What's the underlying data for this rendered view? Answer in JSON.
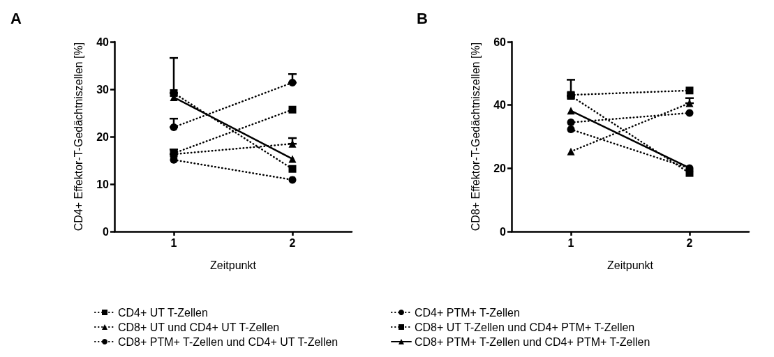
{
  "chart_data": [
    {
      "type": "line",
      "title": "A",
      "xlabel": "Zeitpunkt",
      "ylabel": "CD4+ Effektor-T-Gedächtniszellen [%]",
      "categories": [
        "1",
        "2"
      ],
      "ylim": [
        0,
        40
      ],
      "yticks": [
        0,
        10,
        20,
        30,
        40
      ],
      "grid": false,
      "legend": "bottom",
      "series": [
        {
          "name": "CD4+ UT T-Zellen",
          "color": "#000000",
          "marker": "square",
          "line_style": "dotted",
          "values": [
            16.5,
            25.7
          ]
        },
        {
          "name": "CD4+ PTM+ T-Zellen",
          "color": "#000000",
          "marker": "circle",
          "line_style": "dotted",
          "values": [
            15.1,
            10.9
          ]
        },
        {
          "name": "CD8+ UT und CD4+ UT T-Zellen",
          "color": "#000000",
          "marker": "triangle",
          "line_style": "dotted",
          "values": [
            16.3,
            18.5
          ],
          "errors": [
            [
              16.3,
              17.3
            ],
            [
              18.5,
              19.7
            ]
          ]
        },
        {
          "name": "CD8+ UT T-Zellen und CD4+ PTM+ T-Zellen",
          "color": "#000000",
          "marker": "square",
          "line_style": "dotted",
          "values": [
            29.2,
            13.2
          ],
          "errors": [
            [
              29.2,
              36.6
            ],
            null
          ]
        },
        {
          "name": "CD8+ PTM+ T-Zellen und CD4+ UT T-Zellen",
          "color": "#000000",
          "marker": "circle",
          "line_style": "dotted",
          "values": [
            22.0,
            31.4
          ],
          "errors": [
            [
              22.0,
              23.8
            ],
            [
              31.4,
              33.2
            ]
          ]
        },
        {
          "name": "CD8+ PTM+ T-Zellen und CD4+ PTM+ T-Zellen",
          "color": "#000000",
          "marker": "triangle",
          "line_style": "solid",
          "values": [
            28.3,
            15.3
          ]
        }
      ]
    },
    {
      "type": "line",
      "title": "B",
      "xlabel": "Zeitpunkt",
      "ylabel": "CD8+ Effektor-T-Gedächtniszellen [%]",
      "categories": [
        "1",
        "2"
      ],
      "ylim": [
        0,
        60
      ],
      "yticks": [
        0,
        20,
        40,
        60
      ],
      "grid": false,
      "series": [
        {
          "color": "#000000",
          "marker": "square",
          "line_style": "dotted",
          "values": [
            42.9,
            18.5
          ],
          "errors": [
            [
              42.9,
              48.0
            ],
            null
          ]
        },
        {
          "color": "#000000",
          "marker": "circle",
          "line_style": "dotted",
          "values": [
            34.5,
            37.5
          ]
        },
        {
          "color": "#000000",
          "marker": "triangle",
          "line_style": "dotted",
          "values": [
            25.3,
            40.6
          ],
          "errors": [
            null,
            [
              40.6,
              42.2
            ]
          ]
        },
        {
          "color": "#000000",
          "marker": "square",
          "line_style": "dotted",
          "values": [
            43.2,
            44.6
          ]
        },
        {
          "color": "#000000",
          "marker": "circle",
          "line_style": "dotted",
          "values": [
            32.3,
            20.0
          ]
        },
        {
          "color": "#000000",
          "marker": "triangle",
          "line_style": "solid",
          "values": [
            38.2,
            20.1
          ]
        }
      ]
    }
  ]
}
